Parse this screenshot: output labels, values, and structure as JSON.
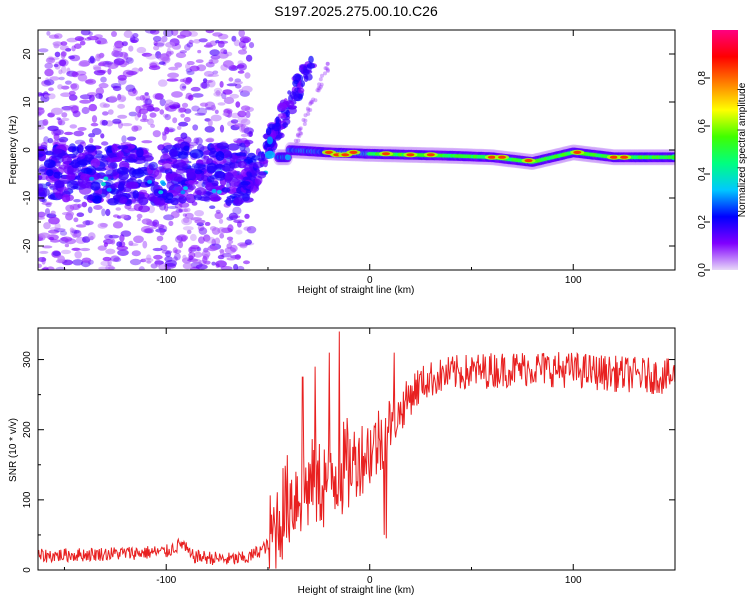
{
  "title": "S197.2025.275.00.10.C26",
  "chart_data": [
    {
      "type": "heatmap",
      "xlabel": "Height of straight line (km)",
      "ylabel": "Frequency (Hz)",
      "xlim": [
        -163,
        150
      ],
      "ylim": [
        -25,
        25
      ],
      "xticks": [
        -100,
        0,
        100
      ],
      "yticks": [
        -20,
        -10,
        0,
        10,
        20
      ],
      "xtick_labels": [
        "-100",
        "0",
        "100"
      ],
      "ytick_labels": [
        "-20",
        "-10",
        "0",
        "10",
        "20"
      ],
      "description_of_signal": {
        "noise_region_km": [
          -163,
          -58
        ],
        "diagonal_streak": {
          "x": [
            -60,
            -30
          ],
          "freq": [
            -8,
            18
          ]
        },
        "carrier_line_points": [
          [
            -40,
            0
          ],
          [
            -20,
            -0.5
          ],
          [
            0,
            -0.8
          ],
          [
            20,
            -1
          ],
          [
            40,
            -1.2
          ],
          [
            60,
            -1.5
          ],
          [
            80,
            -2.5
          ],
          [
            90,
            -1.5
          ],
          [
            100,
            -0.5
          ],
          [
            110,
            -1
          ],
          [
            120,
            -1.5
          ],
          [
            150,
            -1.5
          ]
        ]
      },
      "colorbar": {
        "label": "Normalized spectral amplitude",
        "ticks": [
          0.0,
          0.2,
          0.4,
          0.6,
          0.8
        ],
        "tick_labels": [
          "0.0",
          "0.2",
          "0.4",
          "0.6",
          "0.8"
        ],
        "range": [
          0,
          1
        ],
        "colors": [
          "#e8d8f8",
          "#8000ff",
          "#0000ff",
          "#00c8ff",
          "#00ff80",
          "#40ff00",
          "#ffff00",
          "#ff8000",
          "#ff0000",
          "#ff0080"
        ]
      }
    },
    {
      "type": "line",
      "xlabel": "Height of straight line (km)",
      "ylabel": "SNR (10 * v/v)",
      "xlim": [
        -163,
        150
      ],
      "ylim": [
        0,
        345
      ],
      "xticks": [
        -100,
        0,
        100
      ],
      "yticks": [
        0,
        100,
        200,
        300
      ],
      "xtick_labels": [
        "-100",
        "0",
        "100"
      ],
      "ytick_labels": [
        "0",
        "100",
        "200",
        "300"
      ],
      "color": "#e82020",
      "series": [
        {
          "name": "SNR",
          "anchor_points": [
            [
              -163,
              20
            ],
            [
              -140,
              22
            ],
            [
              -120,
              24
            ],
            [
              -100,
              26
            ],
            [
              -92,
              38
            ],
            [
              -88,
              20
            ],
            [
              -70,
              15
            ],
            [
              -60,
              17
            ],
            [
              -50,
              35
            ],
            [
              -45,
              70
            ],
            [
              -40,
              100
            ],
            [
              -35,
              110
            ],
            [
              -30,
              120
            ],
            [
              -25,
              120
            ],
            [
              -20,
              130
            ],
            [
              -15,
              140
            ],
            [
              -10,
              150
            ],
            [
              -5,
              160
            ],
            [
              0,
              170
            ],
            [
              5,
              185
            ],
            [
              10,
              200
            ],
            [
              15,
              225
            ],
            [
              20,
              250
            ],
            [
              25,
              265
            ],
            [
              30,
              272
            ],
            [
              40,
              280
            ],
            [
              60,
              285
            ],
            [
              80,
              288
            ],
            [
              100,
              285
            ],
            [
              120,
              280
            ],
            [
              150,
              275
            ]
          ],
          "spike_points": [
            [
              -15,
              340
            ],
            [
              -20,
              310
            ],
            [
              -27,
              290
            ],
            [
              -33,
              275
            ],
            [
              12,
              310
            ],
            [
              7,
              50
            ],
            [
              8,
              45
            ]
          ]
        }
      ]
    }
  ]
}
